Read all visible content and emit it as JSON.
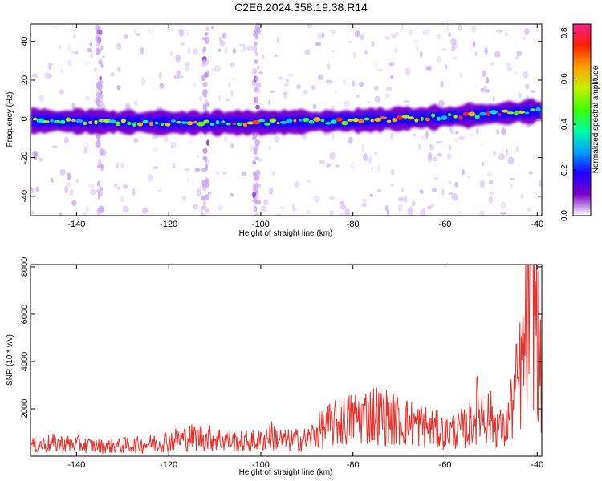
{
  "title": "C2E6.2024.358.19.38.R14",
  "chart_data": [
    {
      "type": "heatmap",
      "title": "C2E6.2024.358.19.38.R14",
      "xlabel": "Height of straight line (km)",
      "ylabel": "Frequency (Hz)",
      "xlim": [
        -150,
        -39
      ],
      "ylim": [
        -50,
        49
      ],
      "xticks": [
        -140,
        -120,
        -100,
        -80,
        -60,
        -40
      ],
      "yticks": [
        -40,
        -20,
        0,
        20,
        40
      ],
      "colorbar": {
        "label": "Normalized spectral amplitude",
        "range": [
          0,
          0.84
        ],
        "ticks": [
          0.0,
          0.2,
          0.4,
          0.6,
          0.8
        ],
        "colormap": [
          "#ffffff",
          "#7a00c8",
          "#1f00ff",
          "#00a0ff",
          "#00ffa0",
          "#40ff00",
          "#c8f000",
          "#ffa000",
          "#ff2000",
          "#ff2090"
        ]
      },
      "ridge": {
        "description": "bright narrow band of high spectral amplitude",
        "x": [
          -150,
          -120,
          -100,
          -80,
          -60,
          -40
        ],
        "frequency": [
          -1,
          -2,
          -2,
          -1,
          1,
          4
        ],
        "peak_amplitude": 0.84
      },
      "spikes_x": [
        -135,
        -112,
        -101
      ],
      "grid": false,
      "legend": "colorbar right"
    },
    {
      "type": "line",
      "xlabel": "Height of straight line (km)",
      "ylabel": "SNR (10 * v/v)",
      "xlim": [
        -150,
        -39
      ],
      "ylim": [
        0,
        8100
      ],
      "xticks": [
        -140,
        -120,
        -100,
        -80,
        -60,
        -40
      ],
      "yticks": [
        2000,
        4000,
        6000,
        8000
      ],
      "color": "#e8312b",
      "series": [
        {
          "x": [
            -150,
            -145,
            -140,
            -135,
            -130,
            -125,
            -120,
            -115,
            -110,
            -105,
            -100,
            -98,
            -95,
            -90,
            -88,
            -85,
            -80,
            -75,
            -70,
            -65,
            -60,
            -55,
            -53,
            -50,
            -47,
            -45,
            -44,
            -43,
            -42,
            -41,
            -40,
            -39
          ],
          "y": [
            450,
            550,
            500,
            420,
            450,
            500,
            650,
            800,
            750,
            600,
            650,
            900,
            650,
            700,
            1000,
            1300,
            1600,
            1800,
            1500,
            1300,
            1000,
            1200,
            2000,
            1600,
            1000,
            2500,
            3200,
            4000,
            6000,
            7800,
            5500,
            3000
          ]
        }
      ],
      "grid": false
    }
  ]
}
